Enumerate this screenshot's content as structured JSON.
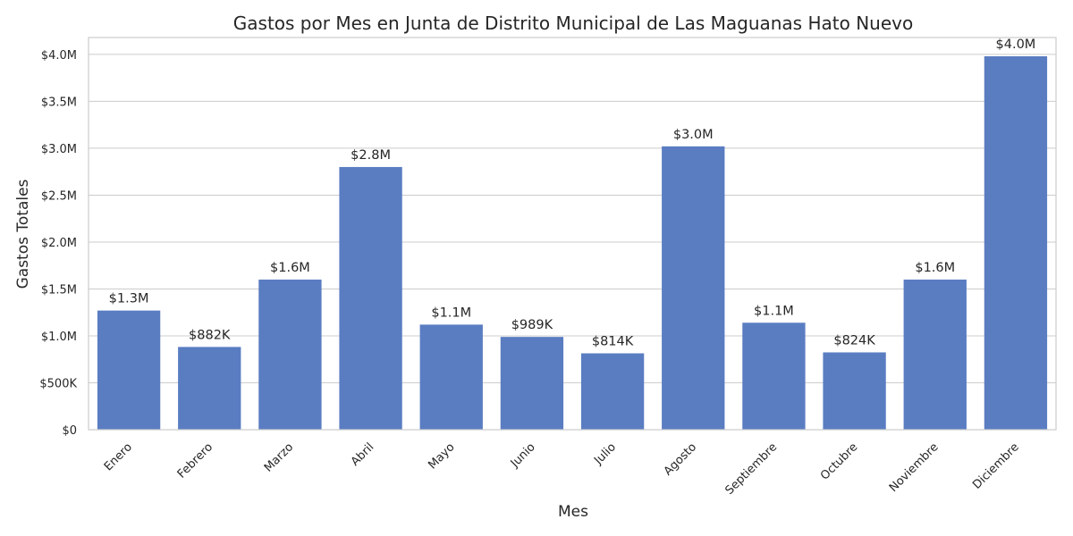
{
  "chart_data": {
    "type": "bar",
    "title": "Gastos por Mes en Junta de Distrito Municipal de Las Maguanas Hato Nuevo",
    "xlabel": "Mes",
    "ylabel": "Gastos Totales",
    "categories": [
      "Enero",
      "Febrero",
      "Marzo",
      "Abril",
      "Mayo",
      "Junio",
      "Julio",
      "Agosto",
      "Septiembre",
      "Octubre",
      "Noviembre",
      "Diciembre"
    ],
    "values": [
      1270000,
      882000,
      1600000,
      2800000,
      1120000,
      989000,
      814000,
      3020000,
      1140000,
      824000,
      1600000,
      3980000
    ],
    "data_labels": [
      "$1.3M",
      "$882K",
      "$1.6M",
      "$2.8M",
      "$1.1M",
      "$989K",
      "$814K",
      "$3.0M",
      "$1.1M",
      "$824K",
      "$1.6M",
      "$4.0M"
    ],
    "ylim": [
      0,
      4180000
    ],
    "yticks": [
      0,
      500000,
      1000000,
      1500000,
      2000000,
      2500000,
      3000000,
      3500000,
      4000000
    ],
    "ytick_labels": [
      "$0",
      "$500K",
      "$1.0M",
      "$1.5M",
      "$2.0M",
      "$2.5M",
      "$3.0M",
      "$3.5M",
      "$4.0M"
    ],
    "bar_color": "#5a7dc2",
    "grid": true,
    "legend": "none"
  }
}
